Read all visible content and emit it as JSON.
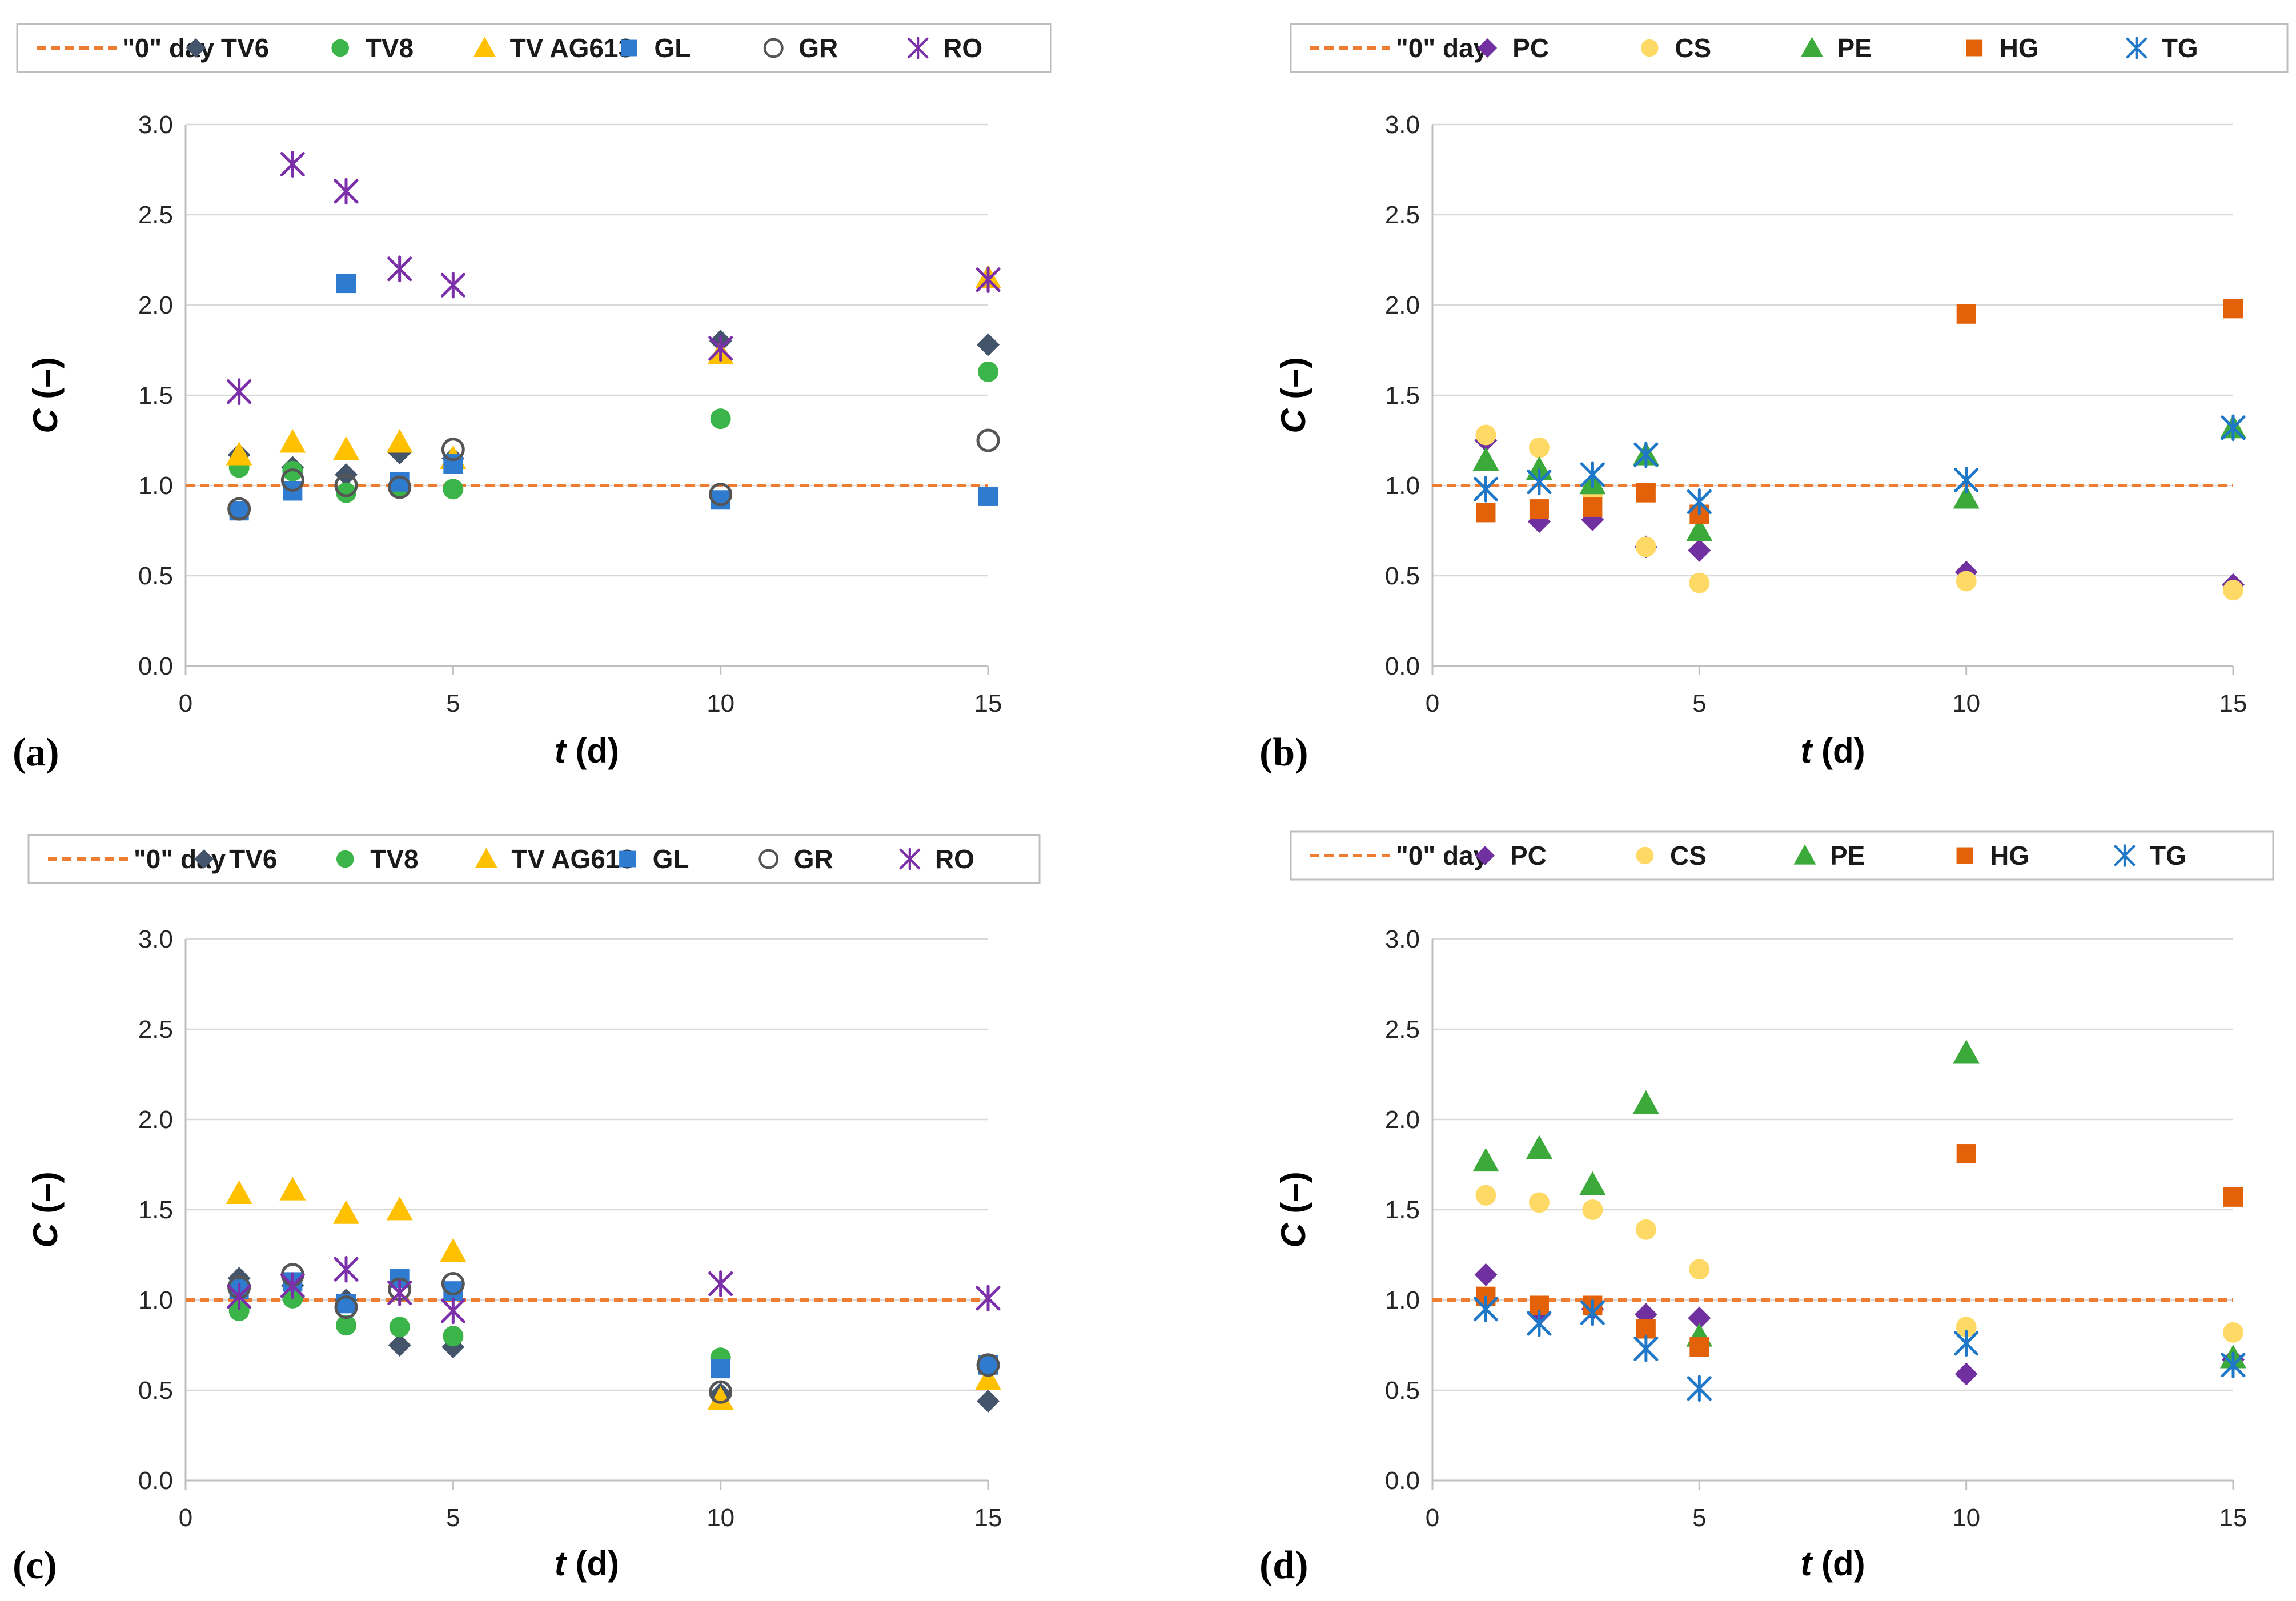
{
  "colors": {
    "zero_line": "#ED7D31",
    "TV6": "#44546A",
    "TV8": "#3BB54A",
    "TV AG613": "#FFC000",
    "GL": "#2E7BCF",
    "GR": "#555555",
    "RO": "#7B2FA8",
    "PC": "#7030A0",
    "CS": "#FFD966",
    "PE": "#3BAA3B",
    "HG": "#E36209",
    "TG": "#1F77C8",
    "grid": "#D9D9D9",
    "axis": "#BFBFBF"
  },
  "chart_data": [
    {
      "type": "scatter",
      "panel_label": "(a)",
      "xlabel_italic": "t",
      "xlabel_rest": " (d)",
      "ylabel_italic": "C",
      "ylabel_rest": " (–)",
      "xlim": [
        0,
        15
      ],
      "ylim": [
        0,
        3
      ],
      "x_ticks": [
        "0",
        "5",
        "10",
        "15"
      ],
      "y_ticks": [
        "0.0",
        "0.5",
        "1.0",
        "1.5",
        "2.0",
        "2.5",
        "3.0"
      ],
      "reference_line": {
        "name": "\"0\" day",
        "y": 1.0
      },
      "legend_position": "top",
      "series": [
        {
          "name": "TV6",
          "marker": "diamond",
          "x": [
            1,
            2,
            3,
            4,
            5,
            10,
            15
          ],
          "y": [
            1.17,
            1.1,
            1.06,
            1.18,
            1.15,
            1.8,
            1.78
          ]
        },
        {
          "name": "TV8",
          "marker": "circle",
          "x": [
            1,
            2,
            3,
            4,
            5,
            10,
            15
          ],
          "y": [
            1.1,
            1.08,
            0.96,
            0.99,
            0.98,
            1.37,
            1.63
          ]
        },
        {
          "name": "TV AG613",
          "marker": "triangle",
          "x": [
            1,
            2,
            3,
            4,
            5,
            10,
            15
          ],
          "y": [
            1.17,
            1.24,
            1.2,
            1.24,
            1.15,
            1.73,
            2.15
          ]
        },
        {
          "name": "GL",
          "marker": "square",
          "x": [
            1,
            2,
            3,
            4,
            5,
            10,
            15
          ],
          "y": [
            0.86,
            0.97,
            2.12,
            1.02,
            1.12,
            0.92,
            0.94
          ]
        },
        {
          "name": "GR",
          "marker": "open-circle",
          "x": [
            1,
            2,
            3,
            4,
            5,
            10,
            15
          ],
          "y": [
            0.87,
            1.03,
            1.0,
            0.99,
            1.2,
            0.95,
            1.25
          ]
        },
        {
          "name": "RO",
          "marker": "star",
          "x": [
            1,
            2,
            3,
            4,
            5,
            10,
            15
          ],
          "y": [
            1.52,
            2.78,
            2.63,
            2.2,
            2.11,
            1.76,
            2.14
          ]
        }
      ]
    },
    {
      "type": "scatter",
      "panel_label": "(b)",
      "xlabel_italic": "t",
      "xlabel_rest": " (d)",
      "ylabel_italic": "C",
      "ylabel_rest": " (–)",
      "xlim": [
        0,
        15
      ],
      "ylim": [
        0,
        3
      ],
      "x_ticks": [
        "0",
        "5",
        "10",
        "15"
      ],
      "y_ticks": [
        "0.0",
        "0.5",
        "1.0",
        "1.5",
        "2.0",
        "2.5",
        "3.0"
      ],
      "reference_line": {
        "name": "\"0\" day",
        "y": 1.0
      },
      "legend_position": "top",
      "series": [
        {
          "name": "PC",
          "marker": "diamond",
          "x": [
            1,
            2,
            3,
            4,
            5,
            10,
            15
          ],
          "y": [
            1.25,
            0.8,
            0.81,
            0.66,
            0.64,
            0.52,
            0.45
          ]
        },
        {
          "name": "CS",
          "marker": "circle",
          "x": [
            1,
            2,
            3,
            4,
            5,
            10,
            15
          ],
          "y": [
            1.28,
            1.21,
            0.95,
            0.66,
            0.46,
            0.47,
            0.42
          ]
        },
        {
          "name": "PE",
          "marker": "triangle",
          "x": [
            1,
            2,
            3,
            4,
            5,
            10,
            15
          ],
          "y": [
            1.14,
            1.09,
            1.01,
            1.17,
            0.75,
            0.93,
            1.32
          ]
        },
        {
          "name": "HG",
          "marker": "square",
          "x": [
            1,
            2,
            3,
            4,
            5,
            10,
            15
          ],
          "y": [
            0.85,
            0.87,
            0.88,
            0.96,
            0.84,
            1.95,
            1.98
          ]
        },
        {
          "name": "TG",
          "marker": "star",
          "x": [
            1,
            2,
            3,
            4,
            5,
            10,
            15
          ],
          "y": [
            0.98,
            1.02,
            1.06,
            1.17,
            0.91,
            1.03,
            1.32
          ]
        }
      ]
    },
    {
      "type": "scatter",
      "panel_label": "(c)",
      "xlabel_italic": "t",
      "xlabel_rest": " (d)",
      "ylabel_italic": "C",
      "ylabel_rest": " (–)",
      "xlim": [
        0,
        15
      ],
      "ylim": [
        0,
        3
      ],
      "x_ticks": [
        "0",
        "5",
        "10",
        "15"
      ],
      "y_ticks": [
        "0.0",
        "0.5",
        "1.0",
        "1.5",
        "2.0",
        "2.5",
        "3.0"
      ],
      "reference_line": {
        "name": "\"0\" day",
        "y": 1.0
      },
      "legend_position": "top",
      "series": [
        {
          "name": "TV6",
          "marker": "diamond",
          "x": [
            1,
            2,
            3,
            4,
            5,
            10,
            15
          ],
          "y": [
            1.12,
            1.08,
            1.0,
            0.75,
            0.74,
            0.48,
            0.44
          ]
        },
        {
          "name": "TV8",
          "marker": "circle",
          "x": [
            1,
            2,
            3,
            4,
            5,
            10,
            15
          ],
          "y": [
            0.94,
            1.01,
            0.86,
            0.85,
            0.8,
            0.68,
            0.63
          ]
        },
        {
          "name": "TV AG613",
          "marker": "triangle",
          "x": [
            1,
            2,
            3,
            4,
            5,
            10,
            15
          ],
          "y": [
            1.59,
            1.61,
            1.48,
            1.5,
            1.27,
            0.45,
            0.56
          ]
        },
        {
          "name": "GL",
          "marker": "square",
          "x": [
            1,
            2,
            3,
            4,
            5,
            10,
            15
          ],
          "y": [
            1.06,
            1.1,
            0.98,
            1.12,
            1.05,
            0.62,
            0.64
          ]
        },
        {
          "name": "GR",
          "marker": "open-circle",
          "x": [
            1,
            2,
            3,
            4,
            5,
            10,
            15
          ],
          "y": [
            1.07,
            1.14,
            0.96,
            1.06,
            1.09,
            0.49,
            0.64
          ]
        },
        {
          "name": "RO",
          "marker": "star",
          "x": [
            1,
            2,
            3,
            4,
            5,
            10,
            15
          ],
          "y": [
            1.02,
            1.08,
            1.17,
            1.04,
            0.94,
            1.09,
            1.01
          ]
        }
      ]
    },
    {
      "type": "scatter",
      "panel_label": "(d)",
      "xlabel_italic": "t",
      "xlabel_rest": " (d)",
      "ylabel_italic": "C",
      "ylabel_rest": " (–)",
      "xlim": [
        0,
        15
      ],
      "ylim": [
        0,
        3
      ],
      "x_ticks": [
        "0",
        "5",
        "10",
        "15"
      ],
      "y_ticks": [
        "0.0",
        "0.5",
        "1.0",
        "1.5",
        "2.0",
        "2.5",
        "3.0"
      ],
      "reference_line": {
        "name": "\"0\" day",
        "y": 1.0
      },
      "legend_position": "top",
      "series": [
        {
          "name": "PC",
          "marker": "diamond",
          "x": [
            1,
            2,
            3,
            4,
            5,
            10,
            15
          ],
          "y": [
            1.14,
            0.92,
            0.95,
            0.92,
            0.9,
            0.59,
            0.67
          ]
        },
        {
          "name": "CS",
          "marker": "circle",
          "x": [
            1,
            2,
            3,
            4,
            5,
            10,
            15
          ],
          "y": [
            1.58,
            1.54,
            1.5,
            1.39,
            1.17,
            0.85,
            0.82
          ]
        },
        {
          "name": "PE",
          "marker": "triangle",
          "x": [
            1,
            2,
            3,
            4,
            5,
            10,
            15
          ],
          "y": [
            1.77,
            1.84,
            1.64,
            2.09,
            0.8,
            2.37,
            0.68
          ]
        },
        {
          "name": "HG",
          "marker": "square",
          "x": [
            1,
            2,
            3,
            4,
            5,
            10,
            15
          ],
          "y": [
            1.02,
            0.97,
            0.97,
            0.84,
            0.74,
            1.81,
            1.57
          ]
        },
        {
          "name": "TG",
          "marker": "star",
          "x": [
            1,
            2,
            3,
            4,
            5,
            10,
            15
          ],
          "y": [
            0.95,
            0.87,
            0.93,
            0.73,
            0.51,
            0.76,
            0.64
          ]
        }
      ]
    }
  ]
}
